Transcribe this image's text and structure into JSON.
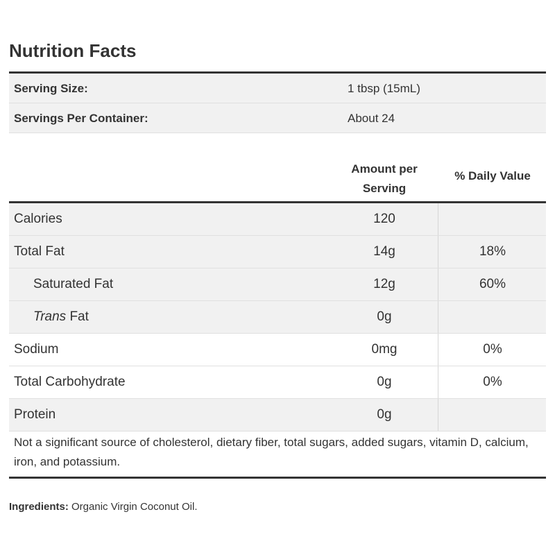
{
  "title": "Nutrition Facts",
  "serving": {
    "size_label": "Serving Size:",
    "size_value": "1 tbsp (15mL)",
    "per_container_label": "Servings Per Container:",
    "per_container_value": "About 24"
  },
  "table_header": {
    "amount_line1": "Amount per",
    "amount_line2": "Serving",
    "daily_value": "% Daily Value"
  },
  "nutrients": [
    {
      "label": "Calories",
      "amount": "120",
      "dv": ""
    },
    {
      "label": "Total Fat",
      "amount": "14g",
      "dv": "18%"
    },
    {
      "label": "Saturated Fat",
      "amount": "12g",
      "dv": "60%"
    },
    {
      "label_italic": "Trans",
      "label_rest": " Fat",
      "amount": "0g",
      "dv": ""
    },
    {
      "label": "Sodium",
      "amount": "0mg",
      "dv": "0%"
    },
    {
      "label": "Total Carbohydrate",
      "amount": "0g",
      "dv": "0%"
    },
    {
      "label": "Protein",
      "amount": "0g",
      "dv": ""
    }
  ],
  "footnote": "Not a significant source of cholesterol, dietary fiber, total sugars, added sugars, vitamin D, calcium, iron, and potassium.",
  "ingredients": {
    "label": "Ingredients:",
    "value": " Organic Virgin Coconut Oil."
  }
}
